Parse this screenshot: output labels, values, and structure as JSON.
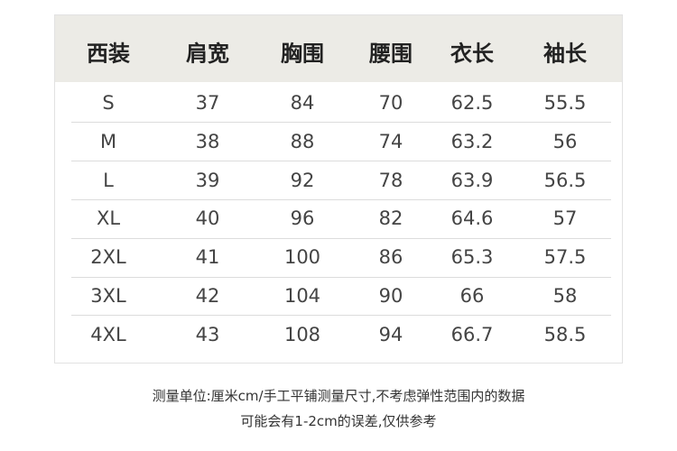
{
  "table": {
    "header": [
      "西装",
      "肩宽",
      "胸围",
      "腰围",
      "衣长",
      "袖长"
    ],
    "rows": [
      [
        "S",
        37,
        84,
        70,
        62.5,
        55.5
      ],
      [
        "M",
        38,
        88,
        74,
        63.2,
        56
      ],
      [
        "L",
        39,
        92,
        78,
        63.9,
        56.5
      ],
      [
        "XL",
        40,
        96,
        82,
        64.6,
        57
      ],
      [
        "2XL",
        41,
        100,
        86,
        65.3,
        57.5
      ],
      [
        "3XL",
        42,
        104,
        90,
        66,
        58
      ],
      [
        "4XL",
        43,
        108,
        94,
        66.7,
        58.5
      ]
    ]
  },
  "note": {
    "lines": [
      "测量单位:厘米cm/手工平铺测量尺寸,不考虑弹性范围内的数据",
      "可能会有1-2cm的误差,仅供参考"
    ]
  }
}
